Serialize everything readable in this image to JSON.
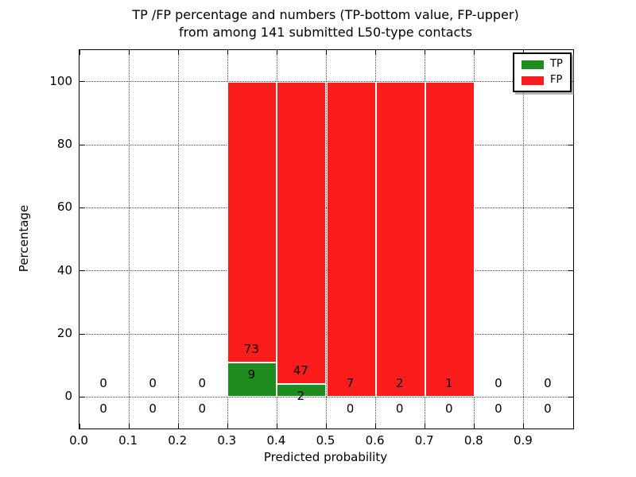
{
  "chart_data": {
    "type": "bar",
    "stacked": true,
    "title_line1": "TP /FP percentage and numbers (TP-bottom value, FP-upper)",
    "title_line2": "from among 141 submitted L50-type contacts",
    "xlabel": "Predicted probability",
    "ylabel": "Percentage",
    "xlim": [
      0.0,
      1.0
    ],
    "ylim": [
      -10,
      110
    ],
    "units": "percent of bin total (TP+FP stack to 100%)",
    "bin_edges": [
      0.0,
      0.1,
      0.2,
      0.3,
      0.4,
      0.5,
      0.6,
      0.7,
      0.8,
      0.9,
      1.0
    ],
    "categories": [
      "0.0-0.1",
      "0.1-0.2",
      "0.2-0.3",
      "0.3-0.4",
      "0.4-0.5",
      "0.5-0.6",
      "0.6-0.7",
      "0.7-0.8",
      "0.8-0.9",
      "0.9-1.0"
    ],
    "series": [
      {
        "name": "TP",
        "color": "#1e8c1e",
        "values": [
          0,
          0,
          0,
          9,
          2,
          0,
          0,
          0,
          0,
          0
        ]
      },
      {
        "name": "FP",
        "color": "#fb1c1c",
        "values": [
          0,
          0,
          0,
          73,
          47,
          7,
          2,
          1,
          0,
          0
        ]
      }
    ],
    "total_submitted": 141,
    "xticks": [
      0.0,
      0.1,
      0.2,
      0.3,
      0.4,
      0.5,
      0.6,
      0.7,
      0.8,
      0.9
    ],
    "xtick_labels": [
      "0.0",
      "0.1",
      "0.2",
      "0.3",
      "0.4",
      "0.5",
      "0.6",
      "0.7",
      "0.8",
      "0.9"
    ],
    "yticks": [
      0,
      20,
      40,
      60,
      80,
      100
    ],
    "ytick_labels": [
      "0",
      "20",
      "40",
      "60",
      "80",
      "100"
    ],
    "grid": "dotted",
    "value_label_offset_pct": 4,
    "legend": {
      "position": "upper right",
      "entries": [
        "TP",
        "FP"
      ]
    }
  }
}
